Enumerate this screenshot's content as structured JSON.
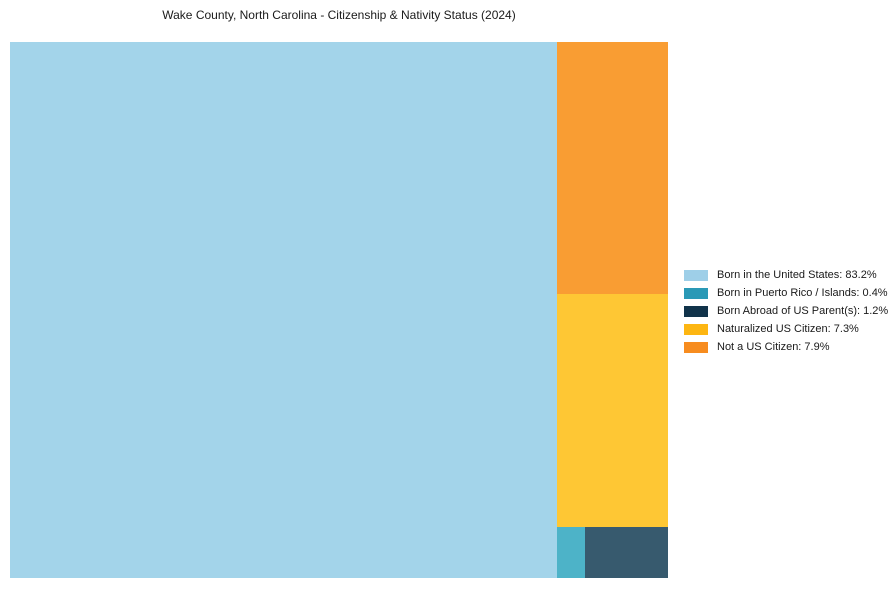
{
  "title": "Wake County, North Carolina - Citizenship & Nativity Status (2024)",
  "background_color": "#ffffff",
  "chart_data": {
    "type": "treemap",
    "title": "Wake County, North Carolina - Citizenship & Nativity Status (2024)",
    "legend_position": "right-center",
    "total_pct": 100,
    "items": [
      {
        "label": "Born in the United States",
        "value": 83.2,
        "legend_label": "Born in the United States: 83.2%",
        "swatch_color": "#9ecfe8",
        "block_color": "#a3d4ea"
      },
      {
        "label": "Born in Puerto Rico / Islands",
        "value": 0.4,
        "legend_label": "Born in Puerto Rico / Islands: 0.4%",
        "swatch_color": "#2a99b6",
        "block_color": "#4db3c8"
      },
      {
        "label": "Born Abroad of US Parent(s)",
        "value": 1.2,
        "legend_label": "Born Abroad of US Parent(s): 1.2%",
        "swatch_color": "#11334a",
        "block_color": "#375a6e"
      },
      {
        "label": "Naturalized US Citizen",
        "value": 7.3,
        "legend_label": "Naturalized US Citizen: 7.3%",
        "swatch_color": "#fdb612",
        "block_color": "#fec734"
      },
      {
        "label": "Not a US Citizen",
        "value": 7.9,
        "legend_label": "Not a US Citizen: 7.9%",
        "swatch_color": "#f78c1f",
        "block_color": "#f99d33"
      }
    ]
  }
}
